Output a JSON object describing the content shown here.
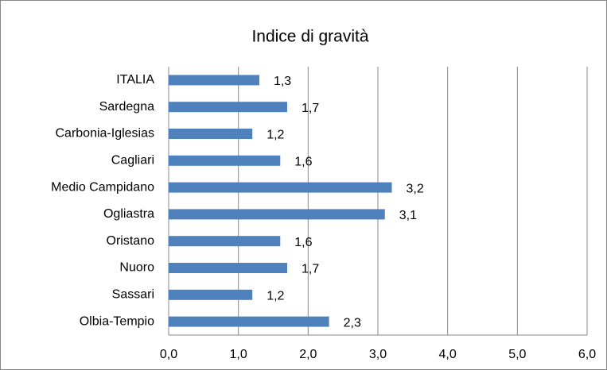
{
  "chart_data": {
    "type": "bar",
    "orientation": "horizontal",
    "title": "Indice di gravità",
    "categories": [
      "ITALIA",
      "Sardegna",
      "Carbonia-Iglesias",
      "Cagliari",
      "Medio Campidano",
      "Ogliastra",
      "Oristano",
      "Nuoro",
      "Sassari",
      "Olbia-Tempio"
    ],
    "values": [
      1.3,
      1.7,
      1.2,
      1.6,
      3.2,
      3.1,
      1.6,
      1.7,
      1.2,
      2.3
    ],
    "value_labels": [
      "1,3",
      "1,7",
      "1,2",
      "1,6",
      "3,2",
      "3,1",
      "1,6",
      "1,7",
      "1,2",
      "2,3"
    ],
    "color": "#4f81bd",
    "xlim": [
      0,
      6
    ],
    "xticks": [
      {
        "value": 0,
        "label": "0,0"
      },
      {
        "value": 1,
        "label": "1,0"
      },
      {
        "value": 2,
        "label": "2,0"
      },
      {
        "value": 3,
        "label": "3,0"
      },
      {
        "value": 4,
        "label": "4,0"
      },
      {
        "value": 5,
        "label": "5,0"
      },
      {
        "value": 6,
        "label": "6,0"
      }
    ],
    "grid": true
  }
}
